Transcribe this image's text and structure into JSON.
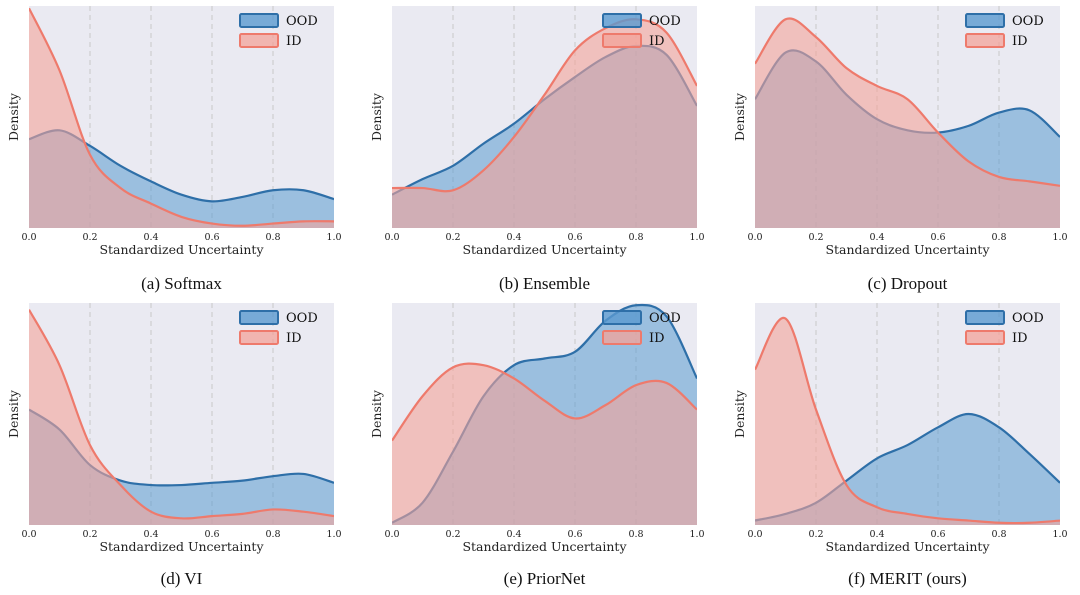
{
  "colors": {
    "ood_line": "#2e6fa8",
    "ood_fill": "#5a9ad0",
    "id_line": "#ee7a6c",
    "id_fill": "#f3a39a",
    "panel_bg": "#eaeaf2",
    "grid": "#c8c8c8"
  },
  "chart_data": [
    {
      "type": "area",
      "caption": "(a) Softmax",
      "xlabel": "Standardized Uncertainty",
      "ylabel": "Density",
      "xlim": [
        0,
        1
      ],
      "ylim": [
        0,
        1
      ],
      "xticks": [
        "0.0",
        "0.2",
        "0.4",
        "0.6",
        "0.8",
        "1.0"
      ],
      "legend": [
        "OOD",
        "ID"
      ],
      "x": [
        0,
        0.1,
        0.2,
        0.3,
        0.4,
        0.5,
        0.6,
        0.7,
        0.8,
        0.9,
        1.0
      ],
      "series": [
        {
          "name": "OOD",
          "values": [
            0.4,
            0.44,
            0.37,
            0.28,
            0.21,
            0.15,
            0.12,
            0.14,
            0.17,
            0.17,
            0.13
          ]
        },
        {
          "name": "ID",
          "values": [
            0.99,
            0.71,
            0.33,
            0.18,
            0.11,
            0.05,
            0.02,
            0.01,
            0.02,
            0.03,
            0.03
          ]
        }
      ]
    },
    {
      "type": "area",
      "caption": "(b) Ensemble",
      "xlabel": "Standardized Uncertainty",
      "ylabel": "Density",
      "xlim": [
        0,
        1
      ],
      "ylim": [
        0,
        1
      ],
      "xticks": [
        "0.0",
        "0.2",
        "0.4",
        "0.6",
        "0.8",
        "1.0"
      ],
      "legend": [
        "OOD",
        "ID"
      ],
      "x": [
        0,
        0.1,
        0.2,
        0.3,
        0.4,
        0.5,
        0.6,
        0.7,
        0.8,
        0.9,
        1.0
      ],
      "series": [
        {
          "name": "OOD",
          "values": [
            0.15,
            0.22,
            0.28,
            0.38,
            0.47,
            0.58,
            0.68,
            0.77,
            0.82,
            0.78,
            0.55
          ]
        },
        {
          "name": "ID",
          "values": [
            0.18,
            0.18,
            0.17,
            0.26,
            0.41,
            0.6,
            0.8,
            0.9,
            0.94,
            0.88,
            0.64
          ]
        }
      ]
    },
    {
      "type": "area",
      "caption": "(c) Dropout",
      "xlabel": "Standardized Uncertainty",
      "ylabel": "Density",
      "xlim": [
        0,
        1
      ],
      "ylim": [
        0,
        1
      ],
      "xticks": [
        "0.0",
        "0.2",
        "0.4",
        "0.6",
        "0.8",
        "1.0"
      ],
      "legend": [
        "OOD",
        "ID"
      ],
      "x": [
        0,
        0.1,
        0.2,
        0.3,
        0.4,
        0.5,
        0.6,
        0.7,
        0.8,
        0.9,
        1.0
      ],
      "series": [
        {
          "name": "OOD",
          "values": [
            0.58,
            0.79,
            0.75,
            0.6,
            0.49,
            0.44,
            0.43,
            0.46,
            0.52,
            0.53,
            0.41
          ]
        },
        {
          "name": "ID",
          "values": [
            0.74,
            0.94,
            0.86,
            0.72,
            0.64,
            0.58,
            0.43,
            0.3,
            0.23,
            0.21,
            0.19
          ]
        }
      ]
    },
    {
      "type": "area",
      "caption": "(d) VI",
      "xlabel": "Standardized Uncertainty",
      "ylabel": "Density",
      "xlim": [
        0,
        1
      ],
      "ylim": [
        0,
        1
      ],
      "xticks": [
        "0.0",
        "0.2",
        "0.4",
        "0.6",
        "0.8",
        "1.0"
      ],
      "legend": [
        "OOD",
        "ID"
      ],
      "x": [
        0,
        0.1,
        0.2,
        0.3,
        0.4,
        0.5,
        0.6,
        0.7,
        0.8,
        0.9,
        1.0
      ],
      "series": [
        {
          "name": "OOD",
          "values": [
            0.52,
            0.43,
            0.27,
            0.2,
            0.18,
            0.18,
            0.19,
            0.2,
            0.22,
            0.23,
            0.19
          ]
        },
        {
          "name": "ID",
          "values": [
            0.97,
            0.72,
            0.36,
            0.18,
            0.06,
            0.03,
            0.04,
            0.05,
            0.07,
            0.06,
            0.04
          ]
        }
      ]
    },
    {
      "type": "area",
      "caption": "(e) PriorNet",
      "xlabel": "Standardized Uncertainty",
      "ylabel": "Density",
      "xlim": [
        0,
        1
      ],
      "ylim": [
        0,
        1
      ],
      "xticks": [
        "0.0",
        "0.2",
        "0.4",
        "0.6",
        "0.8",
        "1.0"
      ],
      "legend": [
        "OOD",
        "ID"
      ],
      "x": [
        0,
        0.1,
        0.2,
        0.3,
        0.4,
        0.5,
        0.6,
        0.7,
        0.8,
        0.9,
        1.0
      ],
      "series": [
        {
          "name": "OOD",
          "values": [
            0.01,
            0.1,
            0.33,
            0.58,
            0.72,
            0.75,
            0.78,
            0.92,
            0.99,
            0.94,
            0.66
          ]
        },
        {
          "name": "ID",
          "values": [
            0.38,
            0.58,
            0.71,
            0.72,
            0.66,
            0.56,
            0.48,
            0.54,
            0.63,
            0.64,
            0.52
          ]
        }
      ]
    },
    {
      "type": "area",
      "caption": "(f) MERIT (ours)",
      "xlabel": "Standardized Uncertainty",
      "ylabel": "Density",
      "xlim": [
        0,
        1
      ],
      "ylim": [
        0,
        1
      ],
      "xticks": [
        "0.0",
        "0.2",
        "0.4",
        "0.6",
        "0.8",
        "1.0"
      ],
      "legend": [
        "OOD",
        "ID"
      ],
      "x": [
        0,
        0.1,
        0.2,
        0.3,
        0.4,
        0.5,
        0.6,
        0.7,
        0.8,
        0.9,
        1.0
      ],
      "series": [
        {
          "name": "OOD",
          "values": [
            0.02,
            0.05,
            0.1,
            0.2,
            0.3,
            0.36,
            0.44,
            0.5,
            0.44,
            0.32,
            0.19
          ]
        },
        {
          "name": "ID",
          "values": [
            0.7,
            0.93,
            0.52,
            0.18,
            0.08,
            0.05,
            0.03,
            0.02,
            0.01,
            0.01,
            0.02
          ]
        }
      ]
    }
  ]
}
